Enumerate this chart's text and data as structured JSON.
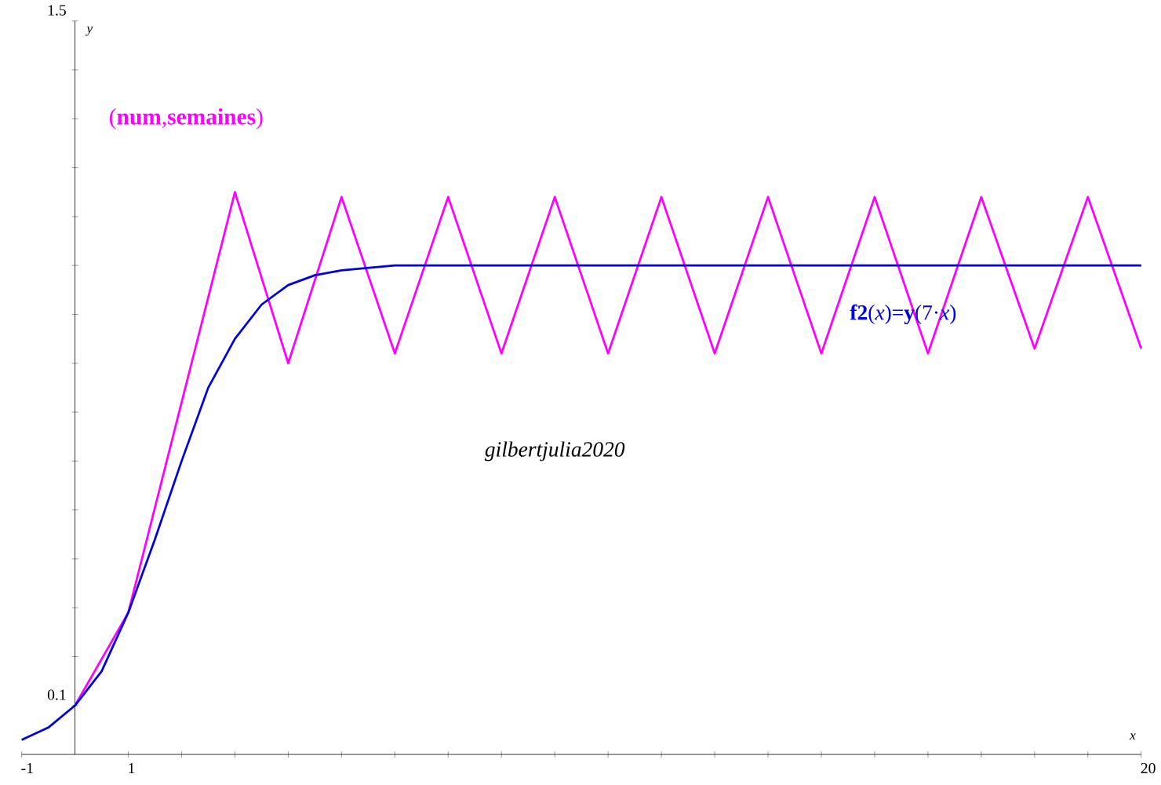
{
  "chart_data": {
    "type": "line",
    "xlabel": "x",
    "ylabel": "y",
    "xlim": [
      -1,
      20
    ],
    "ylim": [
      0,
      1.5
    ],
    "xticks": [
      {
        "value": -1,
        "label": "-1"
      },
      {
        "value": 0,
        "label": null
      },
      {
        "value": 1,
        "label": "1"
      },
      {
        "value": 2,
        "label": null
      },
      {
        "value": 3,
        "label": null
      },
      {
        "value": 4,
        "label": null
      },
      {
        "value": 5,
        "label": null
      },
      {
        "value": 6,
        "label": null
      },
      {
        "value": 7,
        "label": null
      },
      {
        "value": 8,
        "label": null
      },
      {
        "value": 9,
        "label": null
      },
      {
        "value": 10,
        "label": null
      },
      {
        "value": 11,
        "label": null
      },
      {
        "value": 12,
        "label": null
      },
      {
        "value": 13,
        "label": null
      },
      {
        "value": 14,
        "label": null
      },
      {
        "value": 15,
        "label": null
      },
      {
        "value": 16,
        "label": null
      },
      {
        "value": 17,
        "label": null
      },
      {
        "value": 18,
        "label": null
      },
      {
        "value": 19,
        "label": null
      },
      {
        "value": 20,
        "label": "20"
      }
    ],
    "yticks": [
      {
        "value": 0.1,
        "label": "0.1"
      },
      {
        "value": 0.2,
        "label": null
      },
      {
        "value": 0.3,
        "label": null
      },
      {
        "value": 0.4,
        "label": null
      },
      {
        "value": 0.5,
        "label": null
      },
      {
        "value": 0.6,
        "label": null
      },
      {
        "value": 0.7,
        "label": null
      },
      {
        "value": 0.8,
        "label": null
      },
      {
        "value": 0.9,
        "label": null
      },
      {
        "value": 1.0,
        "label": null
      },
      {
        "value": 1.1,
        "label": null
      },
      {
        "value": 1.2,
        "label": null
      },
      {
        "value": 1.3,
        "label": null
      },
      {
        "value": 1.4,
        "label": null
      },
      {
        "value": 1.5,
        "label": "1.5"
      }
    ],
    "grid": false,
    "legend": false,
    "marker": "none",
    "line_style": "solid",
    "series": [
      {
        "name": "(**num**,**semaines**)",
        "color": "#ff00ff",
        "x": [
          0,
          1,
          2,
          3,
          4,
          5,
          6,
          7,
          8,
          9,
          10,
          11,
          12,
          13,
          14,
          15,
          16,
          17,
          18,
          19,
          20
        ],
        "values": [
          0.1,
          0.29,
          0.72,
          1.15,
          0.8,
          1.14,
          0.82,
          1.14,
          0.82,
          1.14,
          0.82,
          1.14,
          0.82,
          1.14,
          0.82,
          1.14,
          0.82,
          1.14,
          0.83,
          1.14,
          0.83
        ]
      },
      {
        "name": "**f2**(*x*)=**y**(7·*x*)",
        "color": "#0000e0",
        "x": [
          -1,
          -0.5,
          0,
          0.5,
          1,
          1.5,
          2,
          2.5,
          3,
          3.5,
          4,
          4.5,
          5,
          6,
          10,
          15,
          20
        ],
        "values": [
          0.03,
          0.055,
          0.1,
          0.17,
          0.29,
          0.44,
          0.6,
          0.75,
          0.85,
          0.92,
          0.96,
          0.98,
          0.99,
          1.0,
          1.0,
          1.0,
          1.0
        ]
      }
    ],
    "annotations": [
      "*gilbertjulia2020*"
    ]
  }
}
